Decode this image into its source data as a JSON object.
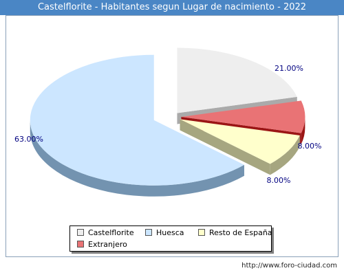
{
  "title": "Castelflorite - Habitantes segun Lugar de nacimiento - 2022",
  "footer": "http://www.foro-ciudad.com",
  "colors": {
    "title_bar": "#4a86c5",
    "label_text": "#000080"
  },
  "chart_data": {
    "type": "pie",
    "title": "Castelflorite - Habitantes segun Lugar de nacimiento - 2022",
    "legend_placement": "bottom-center",
    "series": [
      {
        "name": "Habitantes",
        "slices": [
          {
            "label": "Castelflorite",
            "value": 21.0,
            "value_label": "21.00%",
            "color": "#eeeeee",
            "side_color": "#aaaaaa"
          },
          {
            "label": "Extranjero",
            "value": 8.0,
            "value_label": "8.00%",
            "color": "#e97375",
            "side_color": "#9b1515"
          },
          {
            "label": "Resto de España",
            "value": 8.0,
            "value_label": "8.00%",
            "color": "#ffffcc",
            "side_color": "#a6a680"
          },
          {
            "label": "Huesca",
            "value": 63.0,
            "value_label": "63.00%",
            "color": "#cce6ff",
            "side_color": "#7393b0"
          }
        ]
      }
    ],
    "legend": [
      {
        "label": "Castelflorite",
        "color": "#eeeeee"
      },
      {
        "label": "Huesca",
        "color": "#cce6ff"
      },
      {
        "label": "Resto de España",
        "color": "#ffffcc"
      },
      {
        "label": "Extranjero",
        "color": "#e97375"
      }
    ]
  }
}
